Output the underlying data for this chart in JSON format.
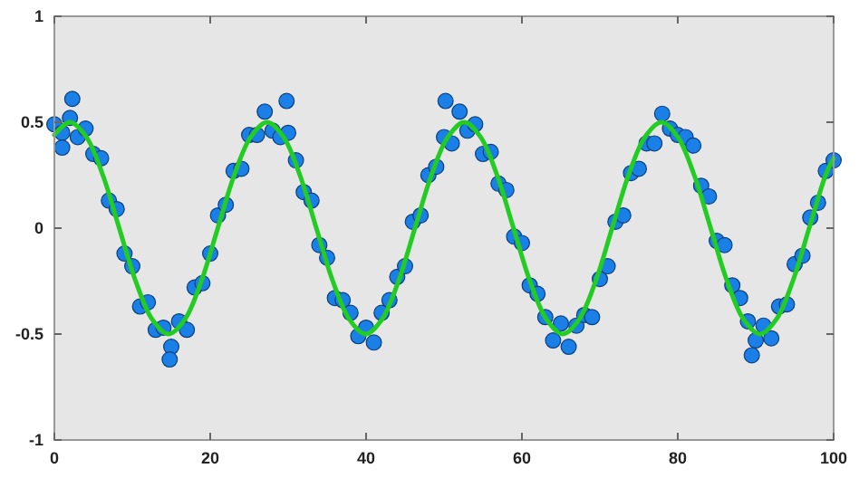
{
  "chart_data": {
    "type": "scatter",
    "xlim": [
      0,
      100
    ],
    "ylim": [
      -1,
      1
    ],
    "xticks": [
      0,
      20,
      40,
      60,
      80,
      100
    ],
    "yticks": [
      -1,
      -0.5,
      0,
      0.5,
      1
    ],
    "grid": false,
    "series": [
      {
        "marker": "circle",
        "color": "#1a7fe6",
        "x": [
          0,
          1,
          2,
          3,
          4,
          5,
          6,
          7,
          8,
          9,
          10,
          11,
          12,
          13,
          14,
          15,
          16,
          17,
          18,
          19,
          20,
          21,
          22,
          23,
          24,
          25,
          26,
          27,
          28,
          29,
          30,
          31,
          32,
          33,
          34,
          35,
          36,
          37,
          38,
          39,
          40,
          41,
          42,
          43,
          44,
          45,
          46,
          47,
          48,
          49,
          50,
          51,
          52,
          53,
          54,
          55,
          56,
          57,
          58,
          59,
          60,
          61,
          62,
          63,
          64,
          65,
          66,
          67,
          68,
          69,
          70,
          71,
          72,
          73,
          74,
          75,
          76,
          77,
          78,
          79,
          80,
          81,
          82,
          83,
          84,
          85,
          86,
          87,
          88,
          89,
          90,
          91,
          92,
          93,
          94,
          95,
          96,
          97,
          98,
          99,
          100,
          14.8,
          50.2,
          2.3,
          29.8,
          89.5,
          1
        ],
        "values": [
          0.49,
          0.45,
          0.52,
          0.43,
          0.47,
          0.35,
          0.33,
          0.13,
          0.09,
          -0.12,
          -0.18,
          -0.37,
          -0.35,
          -0.48,
          -0.47,
          -0.56,
          -0.44,
          -0.48,
          -0.28,
          -0.26,
          -0.12,
          0.06,
          0.11,
          0.27,
          0.28,
          0.44,
          0.44,
          0.55,
          0.46,
          0.43,
          0.45,
          0.32,
          0.17,
          0.13,
          -0.08,
          -0.14,
          -0.33,
          -0.34,
          -0.4,
          -0.51,
          -0.47,
          -0.54,
          -0.4,
          -0.34,
          -0.23,
          -0.18,
          0.03,
          0.06,
          0.25,
          0.29,
          0.43,
          0.4,
          0.55,
          0.46,
          0.49,
          0.35,
          0.36,
          0.21,
          0.18,
          -0.04,
          -0.07,
          -0.27,
          -0.31,
          -0.42,
          -0.53,
          -0.45,
          -0.56,
          -0.46,
          -0.41,
          -0.42,
          -0.24,
          -0.18,
          0.03,
          0.06,
          0.26,
          0.28,
          0.4,
          0.4,
          0.54,
          0.47,
          0.44,
          0.43,
          0.39,
          0.2,
          0.15,
          -0.06,
          -0.08,
          -0.27,
          -0.33,
          -0.44,
          -0.53,
          -0.46,
          -0.52,
          -0.37,
          -0.36,
          -0.17,
          -0.13,
          0.05,
          0.12,
          0.27,
          0.32,
          -0.62,
          0.6,
          0.61,
          0.6,
          -0.6,
          0.38
        ]
      },
      {
        "type": "line",
        "marker": "none",
        "color": "#22cc22",
        "x": [
          0,
          2,
          4.11,
          6.22,
          8.32,
          10.43,
          12.54,
          14.65,
          16.76,
          18.86,
          20.97,
          23.08,
          25.19,
          27.3,
          29.41,
          31.51,
          33.62,
          35.73,
          37.84,
          39.95,
          42.05,
          44.16,
          46.27,
          48.38,
          50.49,
          52.6,
          54.7,
          56.81,
          58.92,
          61.03,
          63.14,
          65.25,
          67.35,
          69.46,
          71.57,
          73.68,
          75.78,
          77.9,
          80,
          82.11,
          84.22,
          86.33,
          88.43,
          90.54,
          92.65,
          94.76,
          96.86,
          98.97,
          100
        ],
        "values": [
          0.44,
          0.5,
          0.43,
          0.25,
          0,
          -0.25,
          -0.43,
          -0.5,
          -0.43,
          -0.25,
          0,
          0.25,
          0.43,
          0.5,
          0.43,
          0.25,
          0,
          -0.25,
          -0.43,
          -0.5,
          -0.43,
          -0.25,
          0,
          0.25,
          0.43,
          0.5,
          0.43,
          0.25,
          0,
          -0.25,
          -0.43,
          -0.5,
          -0.43,
          -0.25,
          0,
          0.25,
          0.43,
          0.5,
          0.43,
          0.25,
          0,
          -0.25,
          -0.43,
          -0.5,
          -0.43,
          -0.25,
          0,
          0.25,
          0.33
        ]
      }
    ]
  }
}
